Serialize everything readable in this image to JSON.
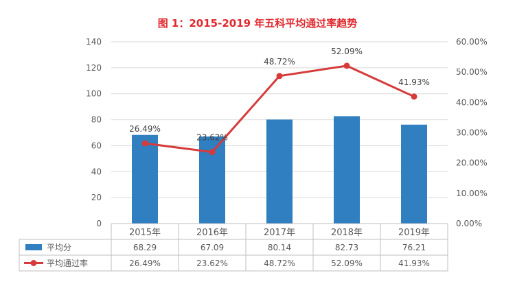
{
  "chart_data": {
    "type": "bar+line",
    "title": "图 1：2015-2019 年五科平均通过率趋势",
    "categories": [
      "2015年",
      "2016年",
      "2017年",
      "2018年",
      "2019年"
    ],
    "series": [
      {
        "name": "平均分",
        "type": "bar",
        "axis": "left",
        "values": [
          68.29,
          67.09,
          80.14,
          82.73,
          76.21
        ],
        "labels": [
          "68.29",
          "67.09",
          "80.14",
          "82.73",
          "76.21"
        ]
      },
      {
        "name": "平均通过率",
        "type": "line",
        "axis": "right",
        "values": [
          26.49,
          23.62,
          48.72,
          52.09,
          41.93
        ],
        "labels": [
          "26.49%",
          "23.62%",
          "48.72%",
          "52.09%",
          "41.93%"
        ]
      }
    ],
    "left_axis": {
      "ylim": [
        0,
        140
      ],
      "ticks": [
        "0",
        "20",
        "40",
        "60",
        "80",
        "100",
        "120",
        "140"
      ]
    },
    "right_axis": {
      "ylim": [
        0,
        60
      ],
      "ticks": [
        "0.00%",
        "10.00%",
        "20.00%",
        "30.00%",
        "40.00%",
        "50.00%",
        "60.00%"
      ]
    },
    "grid": true,
    "legend": "data-table",
    "colors": {
      "title": "#e0282d",
      "bar": "#2f7fc1",
      "line": "#d63b3b",
      "grid": "#d9d9d9",
      "text": "#595959"
    }
  }
}
